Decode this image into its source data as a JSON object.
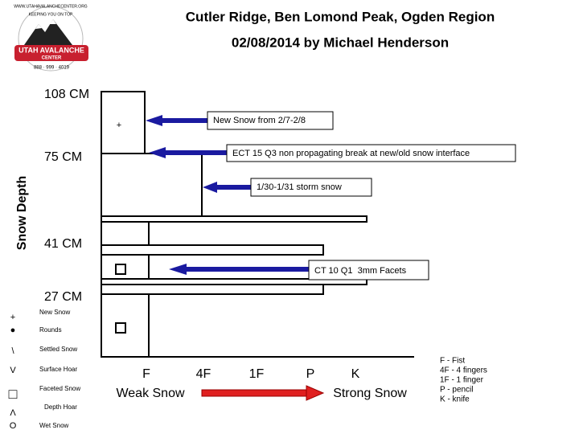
{
  "header": {
    "title": "Cutler Ridge, Ben Lomond Peak, Ogden Region",
    "subtitle": "02/08/2014 by Michael Henderson"
  },
  "logo": {
    "url": "WWW.UTAHAVALANCHECENTER.ORG",
    "motto": "KEEPING YOU ON TOP",
    "name": "UTAH AVALANCHE",
    "center": "CENTER",
    "phone": "888 · 999 · 4019"
  },
  "profile": {
    "axis_label": "Snow Depth",
    "depth_labels": [
      "108 CM",
      "75 CM",
      "41 CM",
      "27 CM"
    ],
    "layer_symbols": [
      "+"
    ],
    "annotations": [
      "New Snow from 2/7-2/8",
      "ECT 15 Q3 non propagating break at new/old snow interface",
      "1/30-1/31 storm snow",
      "CT 10 Q1  3mm Facets"
    ],
    "hardness_labels": [
      "F",
      "4F",
      "1F",
      "P",
      "K"
    ],
    "scale": {
      "weak": "Weak Snow",
      "strong": "Strong Snow"
    }
  },
  "hardness_legend": [
    "F - Fist",
    "4F - 4 fingers",
    "1F - 1 finger",
    "P - pencil",
    "K - knife"
  ],
  "grain_legend": [
    {
      "symbol": "+",
      "label": "New Snow"
    },
    {
      "symbol": "●",
      "label": "Rounds"
    },
    {
      "symbol": "\\",
      "label": "Settled Snow"
    },
    {
      "symbol": "V",
      "label": "Surface Hoar"
    },
    {
      "symbol": "□",
      "label": "Faceted Snow"
    },
    {
      "symbol": "Λ",
      "label": "Depth Hoar"
    },
    {
      "symbol": "O",
      "label": "Wet Snow"
    }
  ]
}
